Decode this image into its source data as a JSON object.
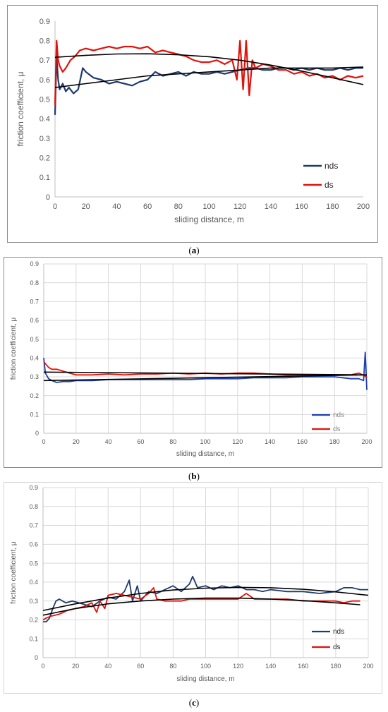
{
  "chart_data": [
    {
      "type": "line",
      "caption": "a",
      "xlabel": "sliding distance, m",
      "ylabel": "friction coefficient, μ",
      "xlim": [
        0,
        200
      ],
      "ylim": [
        0,
        0.9
      ],
      "xticks": [
        "0",
        "20",
        "40",
        "60",
        "80",
        "100",
        "120",
        "140",
        "160",
        "180",
        "200"
      ],
      "yticks": [
        "0",
        "0.1",
        "0.2",
        "0.3",
        "0.4",
        "0.5",
        "0.6",
        "0.7",
        "0.8",
        "0.9"
      ],
      "grid": false,
      "legend": "bottom-right",
      "series": [
        {
          "name": "nds",
          "color": "#1f3a6e",
          "x": [
            0,
            1,
            2,
            3,
            5,
            7,
            9,
            12,
            15,
            18,
            20,
            25,
            30,
            35,
            40,
            45,
            50,
            55,
            60,
            65,
            70,
            75,
            80,
            85,
            90,
            95,
            100,
            105,
            110,
            115,
            120,
            125,
            130,
            135,
            140,
            145,
            150,
            155,
            160,
            165,
            170,
            175,
            180,
            185,
            190,
            195,
            200
          ],
          "y": [
            0.42,
            0.72,
            0.6,
            0.55,
            0.58,
            0.54,
            0.56,
            0.53,
            0.55,
            0.66,
            0.64,
            0.61,
            0.6,
            0.58,
            0.59,
            0.58,
            0.57,
            0.59,
            0.6,
            0.64,
            0.62,
            0.63,
            0.64,
            0.62,
            0.64,
            0.63,
            0.63,
            0.64,
            0.63,
            0.64,
            0.65,
            0.66,
            0.66,
            0.65,
            0.65,
            0.66,
            0.66,
            0.65,
            0.66,
            0.65,
            0.66,
            0.65,
            0.65,
            0.66,
            0.65,
            0.66,
            0.66
          ]
        },
        {
          "name": "ds",
          "color": "#e3120b",
          "x": [
            0,
            1,
            2,
            3,
            5,
            7,
            10,
            13,
            16,
            20,
            25,
            30,
            35,
            40,
            45,
            50,
            55,
            60,
            65,
            70,
            75,
            80,
            85,
            90,
            95,
            100,
            105,
            110,
            115,
            118,
            120,
            122,
            124,
            126,
            128,
            130,
            135,
            140,
            145,
            150,
            155,
            160,
            165,
            170,
            175,
            180,
            185,
            190,
            195,
            200
          ],
          "y": [
            0.47,
            0.8,
            0.7,
            0.67,
            0.64,
            0.66,
            0.7,
            0.72,
            0.75,
            0.76,
            0.75,
            0.76,
            0.77,
            0.76,
            0.77,
            0.77,
            0.76,
            0.77,
            0.74,
            0.75,
            0.74,
            0.73,
            0.72,
            0.7,
            0.69,
            0.69,
            0.7,
            0.68,
            0.7,
            0.6,
            0.8,
            0.55,
            0.8,
            0.52,
            0.7,
            0.66,
            0.68,
            0.67,
            0.65,
            0.65,
            0.63,
            0.64,
            0.62,
            0.63,
            0.61,
            0.62,
            0.6,
            0.62,
            0.61,
            0.62
          ]
        },
        {
          "name": "",
          "color": "#000000",
          "x": [
            0,
            20,
            40,
            60,
            80,
            100,
            120,
            140,
            160,
            180,
            200
          ],
          "y": [
            0.56,
            0.58,
            0.6,
            0.62,
            0.63,
            0.64,
            0.65,
            0.66,
            0.66,
            0.66,
            0.665
          ]
        },
        {
          "name": "",
          "color": "#000000",
          "x": [
            0,
            20,
            40,
            60,
            80,
            100,
            120,
            140,
            160,
            180,
            200
          ],
          "y": [
            0.715,
            0.725,
            0.732,
            0.733,
            0.728,
            0.718,
            0.7,
            0.675,
            0.645,
            0.61,
            0.575
          ]
        }
      ]
    },
    {
      "type": "line",
      "caption": "b",
      "xlabel": "sliding distance, m",
      "ylabel": "friction coefficient, μ",
      "xlim": [
        0,
        200
      ],
      "ylim": [
        0,
        0.9
      ],
      "xticks": [
        "0",
        "20",
        "40",
        "60",
        "80",
        "100",
        "120",
        "140",
        "160",
        "180",
        "200"
      ],
      "yticks": [
        "0",
        "0.1",
        "0.2",
        "0.3",
        "0.4",
        "0.5",
        "0.6",
        "0.7",
        "0.8",
        "0.9"
      ],
      "grid": true,
      "legend": "bottom-right",
      "series": [
        {
          "name": "nds",
          "color": "#1f3fb0",
          "x": [
            0,
            1,
            3,
            5,
            8,
            12,
            16,
            20,
            30,
            40,
            50,
            60,
            70,
            80,
            90,
            100,
            110,
            120,
            130,
            140,
            150,
            160,
            170,
            180,
            190,
            195,
            198,
            199,
            200
          ],
          "y": [
            0.4,
            0.32,
            0.29,
            0.28,
            0.27,
            0.275,
            0.275,
            0.28,
            0.28,
            0.285,
            0.285,
            0.285,
            0.285,
            0.285,
            0.285,
            0.29,
            0.29,
            0.29,
            0.295,
            0.295,
            0.295,
            0.3,
            0.3,
            0.3,
            0.29,
            0.29,
            0.28,
            0.43,
            0.23
          ]
        },
        {
          "name": "ds",
          "color": "#e3120b",
          "x": [
            0,
            1,
            3,
            5,
            8,
            12,
            16,
            20,
            30,
            40,
            50,
            60,
            70,
            80,
            90,
            100,
            110,
            120,
            130,
            140,
            150,
            160,
            170,
            180,
            190,
            195,
            200
          ],
          "y": [
            0.38,
            0.37,
            0.35,
            0.34,
            0.34,
            0.33,
            0.32,
            0.31,
            0.31,
            0.315,
            0.31,
            0.315,
            0.315,
            0.32,
            0.315,
            0.32,
            0.315,
            0.32,
            0.32,
            0.315,
            0.31,
            0.31,
            0.31,
            0.31,
            0.31,
            0.32,
            0.3
          ]
        },
        {
          "name": "",
          "color": "#000000",
          "x": [
            0,
            200
          ],
          "y": [
            0.28,
            0.31
          ]
        },
        {
          "name": "",
          "color": "#000000",
          "x": [
            0,
            200
          ],
          "y": [
            0.325,
            0.31
          ]
        }
      ]
    },
    {
      "type": "line",
      "caption": "c",
      "xlabel": "sliding distance, m",
      "ylabel": "friction coefficient, μ",
      "xlim": [
        0,
        200
      ],
      "ylim": [
        0,
        0.9
      ],
      "xticks": [
        "0",
        "20",
        "40",
        "60",
        "80",
        "100",
        "120",
        "140",
        "160",
        "180",
        "200"
      ],
      "yticks": [
        "0",
        "0.1",
        "0.2",
        "0.3",
        "0.4",
        "0.5",
        "0.6",
        "0.7",
        "0.8",
        "0.9"
      ],
      "grid": true,
      "legend": "bottom-right",
      "series": [
        {
          "name": "nds",
          "color": "#1f3a6e",
          "x": [
            0,
            2,
            4,
            6,
            8,
            10,
            14,
            18,
            22,
            26,
            30,
            35,
            40,
            45,
            50,
            53,
            55,
            58,
            60,
            65,
            70,
            75,
            80,
            85,
            90,
            92,
            95,
            100,
            105,
            110,
            115,
            120,
            125,
            130,
            135,
            140,
            150,
            160,
            170,
            180,
            185,
            190,
            195,
            200
          ],
          "y": [
            0.19,
            0.19,
            0.21,
            0.26,
            0.3,
            0.31,
            0.29,
            0.3,
            0.29,
            0.28,
            0.27,
            0.3,
            0.32,
            0.31,
            0.35,
            0.41,
            0.3,
            0.38,
            0.3,
            0.35,
            0.34,
            0.36,
            0.38,
            0.35,
            0.39,
            0.43,
            0.37,
            0.38,
            0.36,
            0.38,
            0.37,
            0.38,
            0.36,
            0.36,
            0.35,
            0.36,
            0.35,
            0.35,
            0.34,
            0.35,
            0.37,
            0.37,
            0.36,
            0.36
          ]
        },
        {
          "name": "ds",
          "color": "#e3120b",
          "x": [
            0,
            2,
            5,
            10,
            15,
            20,
            25,
            30,
            33,
            35,
            38,
            40,
            45,
            50,
            55,
            60,
            65,
            68,
            70,
            75,
            80,
            85,
            90,
            95,
            100,
            110,
            120,
            125,
            130,
            140,
            150,
            160,
            170,
            180,
            185,
            190,
            195
          ],
          "y": [
            0.2,
            0.21,
            0.22,
            0.23,
            0.25,
            0.26,
            0.27,
            0.29,
            0.24,
            0.3,
            0.26,
            0.33,
            0.34,
            0.33,
            0.32,
            0.31,
            0.34,
            0.37,
            0.31,
            0.3,
            0.3,
            0.3,
            0.31,
            0.31,
            0.31,
            0.31,
            0.31,
            0.34,
            0.31,
            0.31,
            0.31,
            0.3,
            0.3,
            0.3,
            0.29,
            0.3,
            0.3
          ]
        },
        {
          "name": "",
          "color": "#000000",
          "x": [
            0,
            20,
            40,
            60,
            80,
            100,
            120,
            140,
            160,
            180,
            200
          ],
          "y": [
            0.25,
            0.285,
            0.315,
            0.34,
            0.358,
            0.368,
            0.372,
            0.37,
            0.362,
            0.348,
            0.33
          ]
        },
        {
          "name": "",
          "color": "#000000",
          "x": [
            0,
            20,
            40,
            60,
            80,
            100,
            120,
            140,
            160,
            180,
            195
          ],
          "y": [
            0.225,
            0.26,
            0.285,
            0.3,
            0.31,
            0.315,
            0.315,
            0.31,
            0.302,
            0.29,
            0.28
          ]
        }
      ]
    }
  ]
}
